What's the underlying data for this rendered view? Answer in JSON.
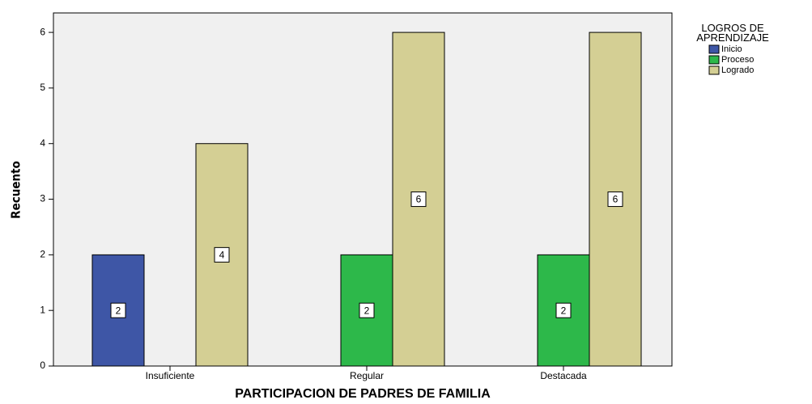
{
  "chart_data": {
    "type": "bar",
    "x_label": "PARTICIPACION DE PADRES DE FAMILIA",
    "y_label": "Recuento",
    "legend_title": "LOGROS DE APRENDIZAJE",
    "categories": [
      "Insuficiente",
      "Regular",
      "Destacada"
    ],
    "series": [
      {
        "name": "Inicio",
        "color": "#3e56a6",
        "values": [
          2,
          null,
          null
        ]
      },
      {
        "name": "Proceso",
        "color": "#2db84a",
        "values": [
          null,
          2,
          2
        ]
      },
      {
        "name": "Logrado",
        "color": "#d4cf94",
        "values": [
          4,
          6,
          6
        ]
      }
    ],
    "ylim": [
      0,
      6.35
    ],
    "yticks": [
      0,
      1,
      2,
      3,
      4,
      5,
      6
    ],
    "legend": "right"
  }
}
